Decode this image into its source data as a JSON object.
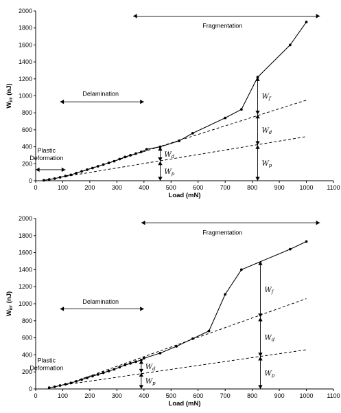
{
  "chart_data": [
    {
      "type": "line",
      "title": "",
      "xlabel": "Load (mN)",
      "ylabel_main": "W",
      "ylabel_sub": "irr",
      "ylabel_unit": "(nJ)",
      "xlim": [
        0,
        1100
      ],
      "ylim": [
        0,
        2000
      ],
      "xticks": [
        "0",
        "100",
        "200",
        "300",
        "400",
        "500",
        "600",
        "700",
        "800",
        "900",
        "1000",
        "1100"
      ],
      "yticks": [
        "0",
        "200",
        "400",
        "600",
        "800",
        "1000",
        "1200",
        "1400",
        "1600",
        "1800",
        "2000"
      ],
      "series": [
        {
          "style": "solid-markers",
          "x": [
            30,
            50,
            70,
            90,
            110,
            130,
            150,
            170,
            190,
            210,
            230,
            250,
            270,
            290,
            310,
            330,
            350,
            370,
            390,
            410,
            460,
            530,
            580,
            700,
            760,
            820,
            940,
            1000
          ],
          "y": [
            5,
            15,
            25,
            40,
            55,
            70,
            90,
            110,
            130,
            150,
            170,
            190,
            210,
            230,
            255,
            280,
            300,
            320,
            340,
            370,
            400,
            470,
            560,
            740,
            840,
            1220,
            1600,
            1870
          ]
        },
        {
          "style": "dashed",
          "x": [
            110,
            1000
          ],
          "y": [
            50,
            520
          ]
        },
        {
          "style": "dashed",
          "x": [
            110,
            1000
          ],
          "y": [
            50,
            950
          ]
        }
      ],
      "regions": [
        {
          "label": "Plastic",
          "label2": "Deformation",
          "x_from": 0,
          "x_to": 110,
          "arrow_y": 130,
          "text_x": 40,
          "text_y": 330
        },
        {
          "label": "Delamination",
          "label2": "",
          "x_from": 90,
          "x_to": 400,
          "arrow_y": 930,
          "text_x": 240,
          "text_y": 1000
        },
        {
          "label": "Fragmentation",
          "label2": "",
          "x_from": 360,
          "x_to": 1050,
          "arrow_y": 1940,
          "text_x": 690,
          "text_y": 1800
        }
      ],
      "measurements": [
        {
          "x": 460,
          "bounds": [
            0,
            230,
            400
          ],
          "labels": [
            {
              "main": "W",
              "sub": "p"
            },
            {
              "main": "W",
              "sub": "d"
            }
          ]
        },
        {
          "x": 820,
          "bounds": [
            0,
            420,
            780,
            1220
          ],
          "labels": [
            {
              "main": "W",
              "sub": "p"
            },
            {
              "main": "W",
              "sub": "d"
            },
            {
              "main": "W",
              "sub": "f"
            }
          ]
        }
      ]
    },
    {
      "type": "line",
      "title": "",
      "xlabel": "Load (mN)",
      "ylabel_main": "W",
      "ylabel_sub": "irr",
      "ylabel_unit": "(nJ)",
      "xlim": [
        0,
        1100
      ],
      "ylim": [
        0,
        2000
      ],
      "xticks": [
        "0",
        "100",
        "200",
        "300",
        "400",
        "500",
        "600",
        "700",
        "800",
        "900",
        "1000",
        "1100"
      ],
      "yticks": [
        "0",
        "200",
        "400",
        "600",
        "800",
        "1000",
        "1200",
        "1400",
        "1600",
        "1800",
        "2000"
      ],
      "series": [
        {
          "style": "solid-markers",
          "x": [
            50,
            70,
            90,
            110,
            130,
            150,
            170,
            190,
            210,
            230,
            250,
            270,
            290,
            310,
            330,
            350,
            370,
            390,
            400,
            460,
            520,
            580,
            640,
            700,
            760,
            940,
            1000
          ],
          "y": [
            15,
            25,
            40,
            55,
            70,
            90,
            110,
            130,
            150,
            170,
            190,
            210,
            230,
            255,
            280,
            300,
            320,
            340,
            360,
            420,
            500,
            590,
            680,
            1110,
            1400,
            1640,
            1730
          ]
        },
        {
          "style": "dashed",
          "x": [
            110,
            1000
          ],
          "y": [
            50,
            460
          ]
        },
        {
          "style": "dashed",
          "x": [
            110,
            1000
          ],
          "y": [
            50,
            1060
          ]
        }
      ],
      "regions": [
        {
          "label": "Plastic",
          "label2": "Deformation",
          "x_from": 0,
          "x_to": 110,
          "arrow_y": -9999,
          "text_x": 40,
          "text_y": 310
        },
        {
          "label": "Delamination",
          "label2": "",
          "x_from": 90,
          "x_to": 400,
          "arrow_y": 940,
          "text_x": 240,
          "text_y": 1000
        },
        {
          "label": "Fragmentation",
          "label2": "",
          "x_from": 390,
          "x_to": 1050,
          "arrow_y": 1950,
          "text_x": 690,
          "text_y": 1810
        }
      ],
      "measurements": [
        {
          "x": 390,
          "bounds": [
            0,
            190,
            340
          ],
          "labels": [
            {
              "main": "W",
              "sub": "p"
            },
            {
              "main": "W",
              "sub": "d"
            }
          ]
        },
        {
          "x": 830,
          "bounds": [
            0,
            380,
            840,
            1500
          ],
          "labels": [
            {
              "main": "W",
              "sub": "p"
            },
            {
              "main": "W",
              "sub": "d"
            },
            {
              "main": "W",
              "sub": "f"
            }
          ]
        }
      ]
    }
  ]
}
